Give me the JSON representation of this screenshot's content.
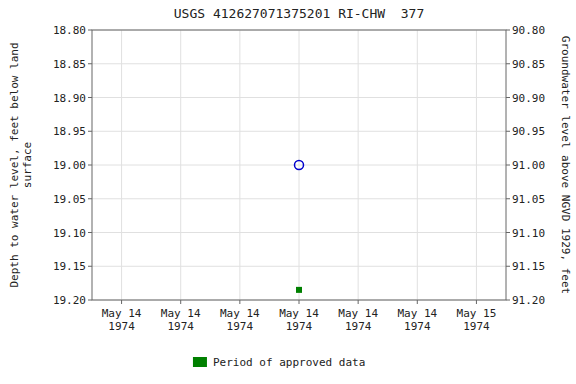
{
  "chart_data": {
    "type": "scatter",
    "title": "USGS 412627071375201 RI-CHW  377",
    "y_label": "Depth to water level, feet below land\nsurface",
    "y2_label": "Groundwater level above NGVD 1929, feet",
    "categories": [
      "May 14\n1974",
      "May 14\n1974",
      "May 14\n1974",
      "May 14\n1974",
      "May 14\n1974",
      "May 14\n1974",
      "May 15\n1974"
    ],
    "ylim": [
      19.2,
      18.8
    ],
    "yticks": [
      {
        "value": 18.8,
        "label": "18.80"
      },
      18.85,
      {
        "value": 18.9,
        "label": "18.90"
      },
      18.95,
      {
        "value": 19.0,
        "label": "19.00"
      },
      19.05,
      {
        "value": 19.1,
        "label": "19.10"
      },
      19.15,
      {
        "value": 19.2,
        "label": "19.20"
      }
    ],
    "y2lim": [
      91.2,
      90.8
    ],
    "y2ticks": [
      {
        "value": 91.2,
        "label": "91.20"
      },
      91.15,
      {
        "value": 91.1,
        "label": "91.10"
      },
      91.05,
      {
        "value": 91.0,
        "label": "91.00"
      },
      90.95,
      {
        "value": 90.9,
        "label": "90.90"
      },
      90.85,
      {
        "value": 90.8,
        "label": "90.80"
      }
    ],
    "grid": true,
    "legend": "bottom",
    "series": [
      {
        "color": "#0000cc",
        "marker": "circle-open",
        "values": [
          null,
          null,
          null,
          19.0,
          null,
          null,
          null
        ]
      },
      {
        "name": "Period of approved data",
        "color": "#008000",
        "marker": "square",
        "values": [
          null,
          null,
          null,
          19.185,
          null,
          null,
          null
        ]
      }
    ]
  }
}
